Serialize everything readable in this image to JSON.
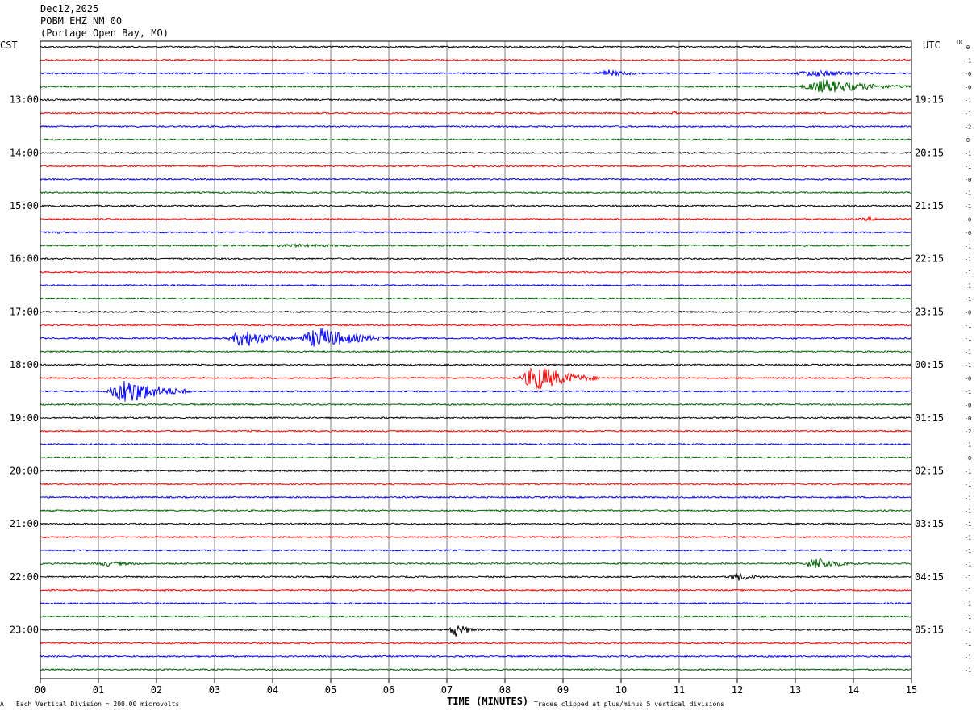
{
  "header": {
    "date": "Dec12,2025",
    "station": "POBM EHZ NM 00",
    "location": "(Portage Open Bay, MO)"
  },
  "left_zone_label": "CST",
  "right_zone_label": "UTC",
  "dc_label": "DC",
  "footer": {
    "scale_note": "Each Vertical Division =  200.00 microvolts",
    "xlabel": "TIME (MINUTES)",
    "clip_note": "Traces clipped at plus/minus 5 vertical divisions",
    "corner_mark": "Λ"
  },
  "colors": {
    "trace_cycle": [
      "#000000",
      "#ff0000",
      "#0000ff",
      "#006400"
    ],
    "grid": "#808080",
    "frame": "#000000"
  },
  "chart_data": {
    "type": "line",
    "chart_kind": "helicorder",
    "x_range": [
      0,
      15
    ],
    "xticks": [
      "00",
      "01",
      "02",
      "03",
      "04",
      "05",
      "06",
      "07",
      "08",
      "09",
      "10",
      "11",
      "12",
      "13",
      "14",
      "15"
    ],
    "trace_count": 48,
    "minutes_per_trace": 15,
    "left_hour_labels": [
      "13:00",
      "14:00",
      "15:00",
      "16:00",
      "17:00",
      "18:00",
      "19:00",
      "20:00",
      "21:00",
      "22:00",
      "23:00"
    ],
    "right_hour_labels": [
      "19:15",
      "20:15",
      "21:15",
      "22:15",
      "23:15",
      "00:15",
      "01:15",
      "02:15",
      "03:15",
      "04:15",
      "05:15"
    ],
    "dc_offsets": [
      "0",
      "-1",
      "-0",
      "-0",
      "-1",
      "-1",
      "-2",
      "0",
      "-1",
      "-1",
      "-0",
      "-1",
      "-1",
      "-0",
      "-0",
      "-1",
      "-1",
      "-1",
      "-1",
      "-1",
      "-0",
      "-1",
      "-1",
      "-1",
      "-1",
      "-0",
      "-1",
      "-0",
      "-0",
      "-2",
      "-1",
      "-0",
      "-1",
      "-1",
      "-1",
      "-1",
      "-1",
      "-1",
      "-1",
      "-1",
      "-1",
      "-1",
      "-1",
      "-1",
      "-1",
      "-1",
      "-1",
      "-1"
    ],
    "events": [
      {
        "trace": 2,
        "start_min": 9.5,
        "end_min": 10.6,
        "amp_div": 1.3
      },
      {
        "trace": 2,
        "start_min": 12.8,
        "end_min": 15.0,
        "amp_div": 1.2
      },
      {
        "trace": 3,
        "start_min": 13.0,
        "end_min": 15.0,
        "amp_div": 2.6
      },
      {
        "trace": 4,
        "start_min": 0.0,
        "end_min": 0.5,
        "amp_div": 0.6
      },
      {
        "trace": 4,
        "start_min": 8.8,
        "end_min": 9.2,
        "amp_div": 0.6
      },
      {
        "trace": 5,
        "start_min": 10.85,
        "end_min": 11.05,
        "amp_div": 1.0
      },
      {
        "trace": 9,
        "start_min": 7.4,
        "end_min": 7.7,
        "amp_div": 0.6
      },
      {
        "trace": 10,
        "start_min": 5.2,
        "end_min": 5.5,
        "amp_div": 0.5
      },
      {
        "trace": 13,
        "start_min": 14.0,
        "end_min": 15.0,
        "amp_div": 0.7
      },
      {
        "trace": 14,
        "start_min": 0.0,
        "end_min": 0.8,
        "amp_div": 0.6
      },
      {
        "trace": 15,
        "start_min": 3.5,
        "end_min": 7.0,
        "amp_div": 0.6
      },
      {
        "trace": 22,
        "start_min": 3.2,
        "end_min": 4.4,
        "amp_div": 3.4
      },
      {
        "trace": 22,
        "start_min": 4.4,
        "end_min": 6.0,
        "amp_div": 4.0
      },
      {
        "trace": 25,
        "start_min": 8.2,
        "end_min": 9.6,
        "amp_div": 4.8
      },
      {
        "trace": 26,
        "start_min": 1.1,
        "end_min": 2.6,
        "amp_div": 4.8
      },
      {
        "trace": 29,
        "start_min": 7.8,
        "end_min": 8.1,
        "amp_div": 0.5
      },
      {
        "trace": 36,
        "start_min": 13.3,
        "end_min": 13.9,
        "amp_div": 0.5
      },
      {
        "trace": 39,
        "start_min": 0.8,
        "end_min": 2.2,
        "amp_div": 0.9
      },
      {
        "trace": 39,
        "start_min": 13.1,
        "end_min": 14.1,
        "amp_div": 2.4
      },
      {
        "trace": 40,
        "start_min": 11.8,
        "end_min": 12.6,
        "amp_div": 1.6
      },
      {
        "trace": 44,
        "start_min": 7.0,
        "end_min": 7.6,
        "amp_div": 2.5
      }
    ]
  }
}
